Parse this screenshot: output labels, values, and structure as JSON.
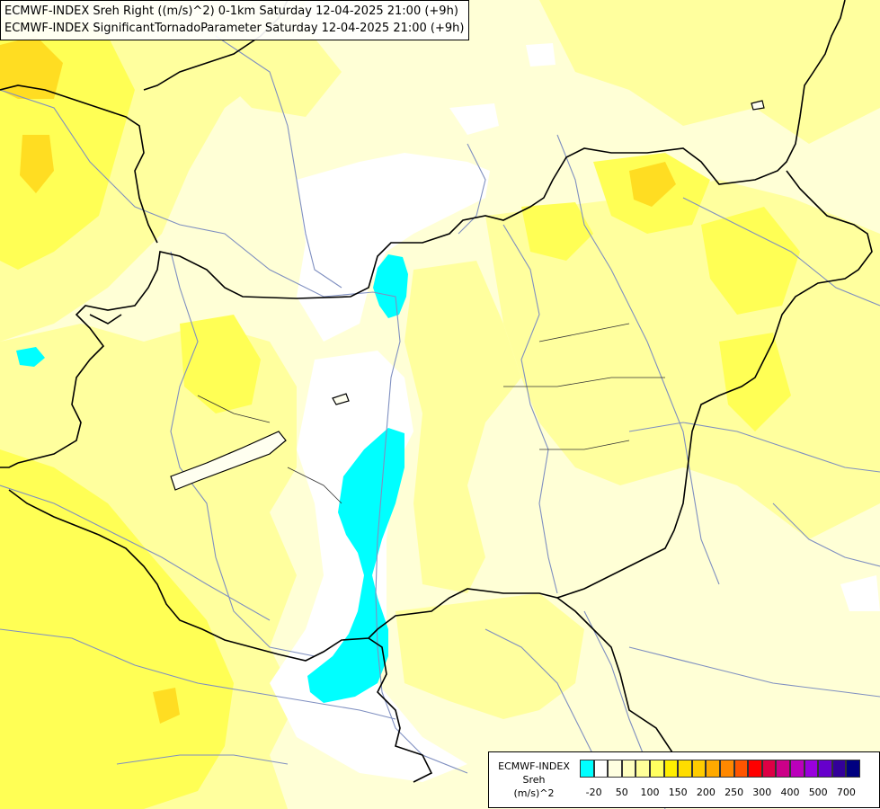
{
  "header": {
    "line1": "ECMWF-INDEX Sreh Right ((m/s)^2) 0-1km Saturday 12-04-2025 21:00 (+9h)",
    "line2": "ECMWF-INDEX SignificantTornadoParameter Saturday 12-04-2025 21:00 (+9h)"
  },
  "legend": {
    "name1": "ECMWF-INDEX",
    "name2": "Sreh",
    "name3": "(m/s)^2",
    "colors": [
      "#00ffff",
      "#ffffff",
      "#ffffe0",
      "#ffffc0",
      "#ffff99",
      "#ffff60",
      "#ffee00",
      "#ffdd00",
      "#ffcc00",
      "#ffaa00",
      "#ff8800",
      "#ff5500",
      "#ff0000",
      "#dd0044",
      "#cc0088",
      "#bb00bb",
      "#9900dd",
      "#6600cc",
      "#330099",
      "#000080"
    ],
    "ticks": [
      "-20",
      "50",
      "100",
      "150",
      "200",
      "250",
      "300",
      "400",
      "500",
      "700"
    ]
  },
  "colors": {
    "border": "#000000",
    "river": "#7f8fc0",
    "lake": "#ffffff"
  }
}
